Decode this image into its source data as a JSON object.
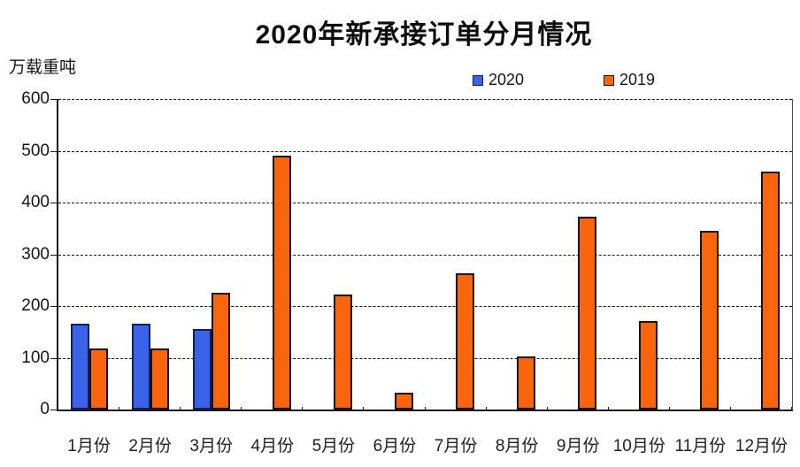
{
  "page": {
    "background": "#ffffff"
  },
  "chart_data": {
    "type": "bar",
    "title": "2020年新承接订单分月情况",
    "xlabel": "",
    "ylabel": "万载重吨",
    "categories": [
      "1月份",
      "2月份",
      "3月份",
      "4月份",
      "5月份",
      "6月份",
      "7月份",
      "8月份",
      "9月份",
      "10月份",
      "11月份",
      "12月份"
    ],
    "series": [
      {
        "name": "2020",
        "color": "#3a63ea",
        "border_color": "#131f52",
        "values": [
          165,
          165,
          155,
          null,
          null,
          null,
          null,
          null,
          null,
          null,
          null,
          null
        ]
      },
      {
        "name": "2019",
        "color": "#f8650d",
        "border_color": "#1c1006",
        "values": [
          118,
          118,
          225,
          490,
          223,
          33,
          263,
          102,
          373,
          171,
          345,
          460
        ]
      }
    ],
    "ylim": [
      0,
      600
    ],
    "yticks": [
      0,
      100,
      200,
      300,
      400,
      500,
      600
    ],
    "grid": true,
    "gridline_style": "dashed",
    "legend_position": "top-center",
    "axis_color": "#1a1a1a",
    "plot_background": "#ffffff"
  }
}
